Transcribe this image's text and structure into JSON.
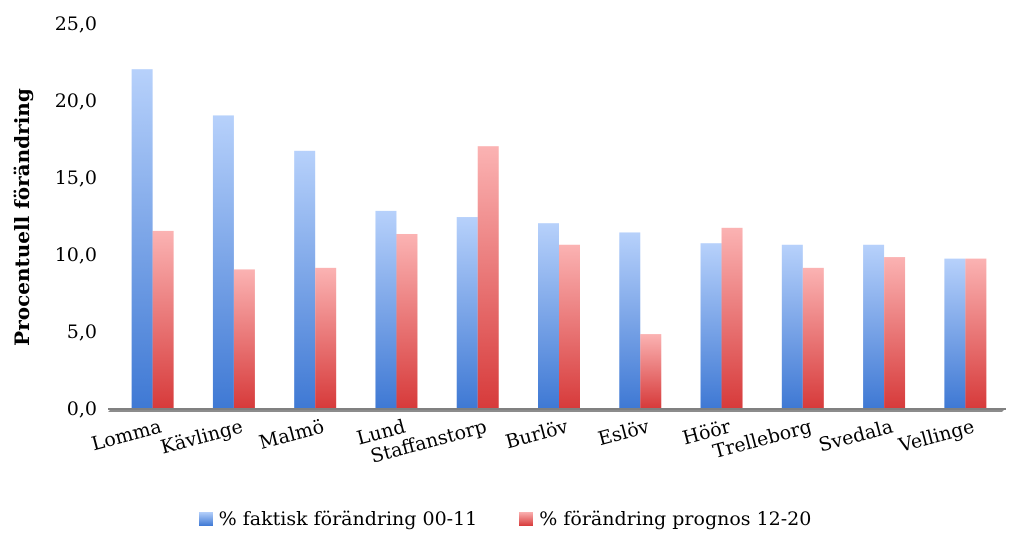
{
  "chart_data": {
    "type": "bar",
    "title": "",
    "xlabel": "",
    "ylabel": "Procentuell förändring",
    "ylim": [
      0,
      25
    ],
    "yticks": [
      "0,0",
      "5,0",
      "10,0",
      "15,0",
      "20,0",
      "25,0"
    ],
    "ytick_values": [
      0,
      5,
      10,
      15,
      20,
      25
    ],
    "grid": false,
    "legend_position": "bottom",
    "categories": [
      "Lomma",
      "Kävlinge",
      "Malmö",
      "Lund",
      "Staffanstorp",
      "Burlöv",
      "Eslöv",
      "Höör",
      "Trelleborg",
      "Svedala",
      "Vellinge"
    ],
    "series": [
      {
        "name": "% faktisk förändring 00-11",
        "color": "#5b8fd9",
        "values": [
          22.0,
          19.0,
          16.7,
          12.8,
          12.4,
          12.0,
          11.4,
          10.7,
          10.6,
          10.6,
          9.7
        ]
      },
      {
        "name": "% förändring prognos 12-20",
        "color": "#e05050",
        "values": [
          11.5,
          9.0,
          9.1,
          11.3,
          17.0,
          10.6,
          4.8,
          11.7,
          9.1,
          9.8,
          9.7
        ]
      }
    ]
  }
}
